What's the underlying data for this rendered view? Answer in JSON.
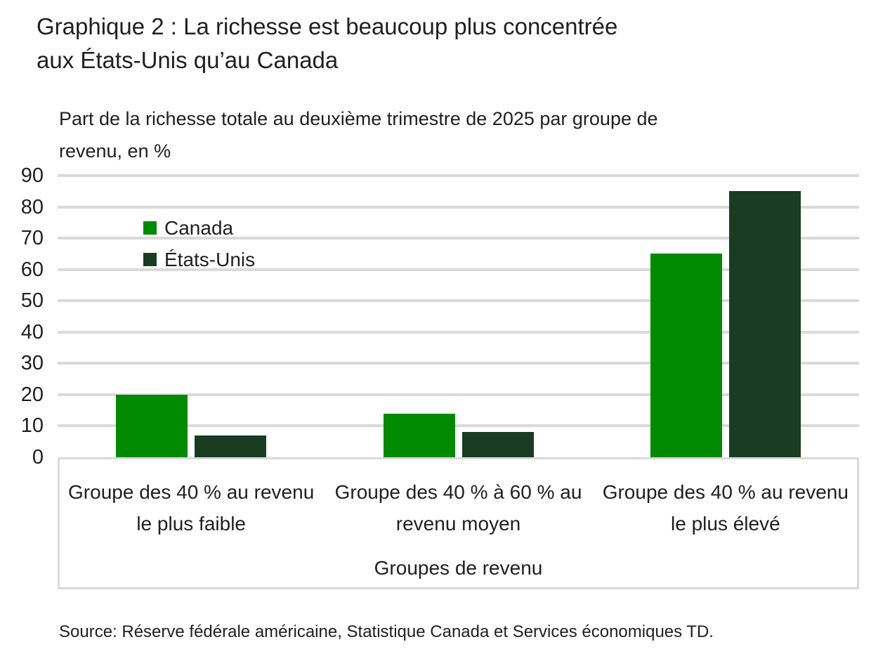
{
  "page": {
    "title": "Graphique 2 : La richesse est beaucoup plus concentrée aux États-Unis qu’au Canada",
    "subtitle": "Part de la richesse totale au deuxième trimestre de 2025 par groupe de revenu, en %",
    "source": "Source: Réserve fédérale américaine, Statistique Canada et Services économiques TD."
  },
  "chart_data": {
    "type": "bar",
    "title": "Graphique 2 : La richesse est beaucoup plus concentrée aux États-Unis qu’au Canada",
    "subtitle": "Part de la richesse totale au deuxième trimestre de 2025 par groupe de revenu, en %",
    "categories": [
      "Groupe des 40 % au revenu le plus faible",
      "Groupe des 40 % à 60 % au revenu moyen",
      "Groupe des 40 % au revenu le plus élevé"
    ],
    "series": [
      {
        "name": "Canada",
        "color": "#008a00",
        "values": [
          20,
          14,
          65
        ]
      },
      {
        "name": "États-Unis",
        "color": "#1a3c23",
        "values": [
          7,
          8,
          85
        ]
      }
    ],
    "xlabel": "Groupes de revenu",
    "ylabel": "",
    "ylim": [
      0,
      90
    ],
    "ytick_step": 10,
    "grid": true,
    "legend_position": "upper-left-inside",
    "gridline_color": "#dadada",
    "frame_color": "#dadada",
    "text_color": "#1f1f1f"
  }
}
